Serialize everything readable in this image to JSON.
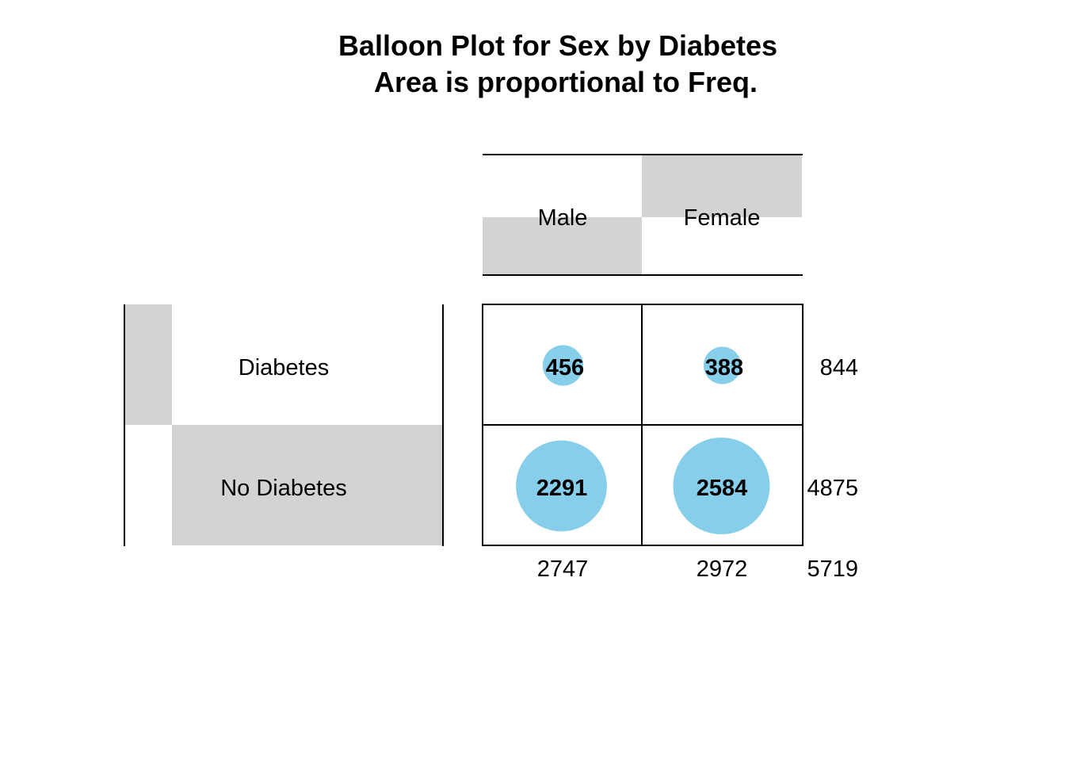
{
  "chart_data": {
    "type": "balloon",
    "title": "Balloon Plot for Sex by Diabetes",
    "subtitle": "Area is proportional to Freq.",
    "column_variable_categories": [
      "Male",
      "Female"
    ],
    "row_variable_categories": [
      "Diabetes",
      "No Diabetes"
    ],
    "cells": [
      [
        456,
        388
      ],
      [
        2291,
        2584
      ]
    ],
    "row_totals": [
      844,
      4875
    ],
    "column_totals": [
      2747,
      2972
    ],
    "grand_total": 5719,
    "colors": {
      "balloon": "#87ceeb",
      "marginal_bar": "#d3d3d3",
      "line": "#000000",
      "background": "#ffffff"
    }
  }
}
